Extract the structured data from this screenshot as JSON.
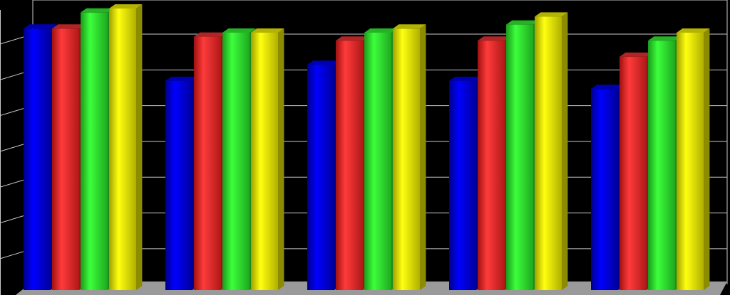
{
  "chart_data": {
    "type": "bar",
    "categories": [
      "",
      "",
      "",
      "",
      ""
    ],
    "series": [
      {
        "color": "#0000ff",
        "values": [
          6.5,
          5.2,
          5.6,
          5.2,
          5.0
        ]
      },
      {
        "color": "#ff3333",
        "values": [
          6.5,
          6.3,
          6.2,
          6.2,
          5.8
        ]
      },
      {
        "color": "#33ff33",
        "values": [
          6.9,
          6.4,
          6.4,
          6.6,
          6.2
        ]
      },
      {
        "color": "#ffff00",
        "values": [
          7.0,
          6.4,
          6.5,
          6.8,
          6.4
        ]
      }
    ],
    "ylim": [
      0,
      7.0
    ],
    "grid": true,
    "background": "#000000",
    "floor_color": "#9a9a9a",
    "grid_color": "#c8c8c8"
  }
}
